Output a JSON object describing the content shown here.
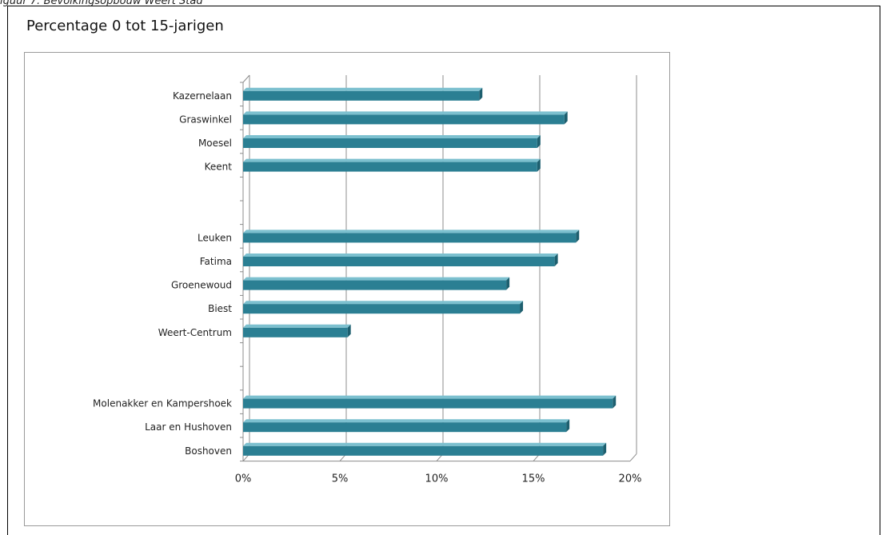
{
  "caption": "iguur 7: Bevolkingsopbouw Weert Stad",
  "panel_title": "Percentage 0 tot 15-jarigen",
  "colors": {
    "bar": "#2b7f93",
    "bar_top": "#7cc0cf",
    "bar_end": "#1d5f6f",
    "grid": "#8c8c8c"
  },
  "chart_data": {
    "type": "bar",
    "orientation": "horizontal",
    "title": "",
    "xlabel": "",
    "ylabel": "",
    "xlim": [
      0,
      20
    ],
    "x_ticks": [
      "0%",
      "5%",
      "10%",
      "15%",
      "20%"
    ],
    "x_tick_values": [
      0,
      5,
      10,
      15,
      20
    ],
    "grid": "vertical",
    "legend": "none",
    "categories": [
      "Kazernelaan",
      "Graswinkel",
      "Moesel",
      "Keent",
      "",
      "",
      "Leuken",
      "Fatima",
      "Groenewoud",
      "Biest",
      "Weert-Centrum",
      "",
      "",
      "Molenakker en Kampershoek",
      "Laar en Hushoven",
      "Boshoven"
    ],
    "values": [
      12.2,
      16.6,
      15.2,
      15.2,
      null,
      null,
      17.2,
      16.1,
      13.6,
      14.3,
      5.4,
      null,
      null,
      19.1,
      16.7,
      18.6
    ]
  }
}
